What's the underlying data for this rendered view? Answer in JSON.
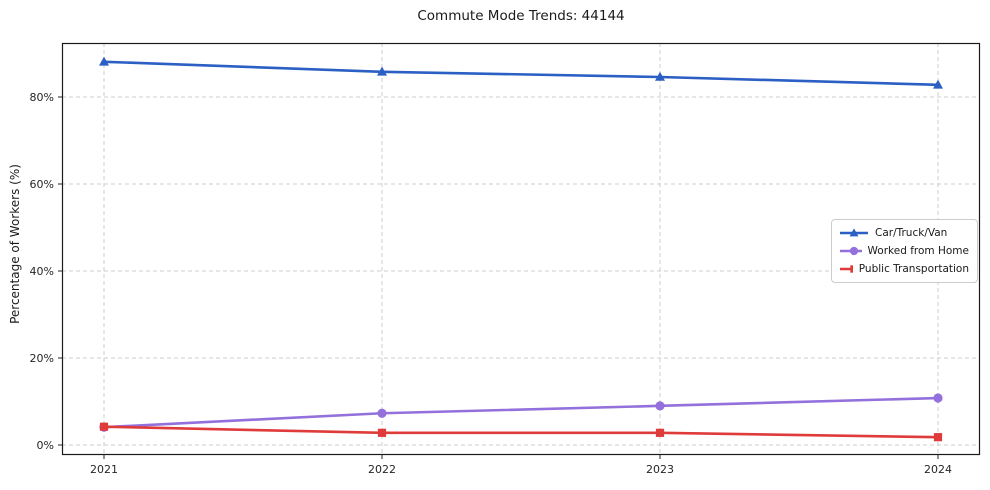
{
  "title": "Commute Mode Trends: 44144",
  "chart_data": {
    "type": "line",
    "title": "Commute Mode Trends: 44144",
    "xlabel": "",
    "ylabel": "Percentage of Workers (%)",
    "categories": [
      "2021",
      "2022",
      "2023",
      "2024"
    ],
    "yticks": {
      "labels": [
        "0%",
        "20%",
        "40%",
        "60%",
        "80%"
      ],
      "values": [
        0,
        20,
        40,
        60,
        80
      ]
    },
    "ylim": [
      -2.3,
      92.4
    ],
    "grid": true,
    "grid_style": "dashed",
    "legend_position": "center right",
    "series": [
      {
        "name": "Car/Truck/Van",
        "marker": "triangle",
        "color": "#2b5fc4",
        "values": [
          88.1,
          85.8,
          84.6,
          82.8
        ]
      },
      {
        "name": "Worked from Home",
        "marker": "circle",
        "color": "#9370db",
        "values": [
          4.1,
          7.3,
          9.0,
          10.8
        ]
      },
      {
        "name": "Public Transportation",
        "marker": "square",
        "color": "#e03b3b",
        "values": [
          4.2,
          2.8,
          2.8,
          1.8
        ]
      }
    ]
  }
}
